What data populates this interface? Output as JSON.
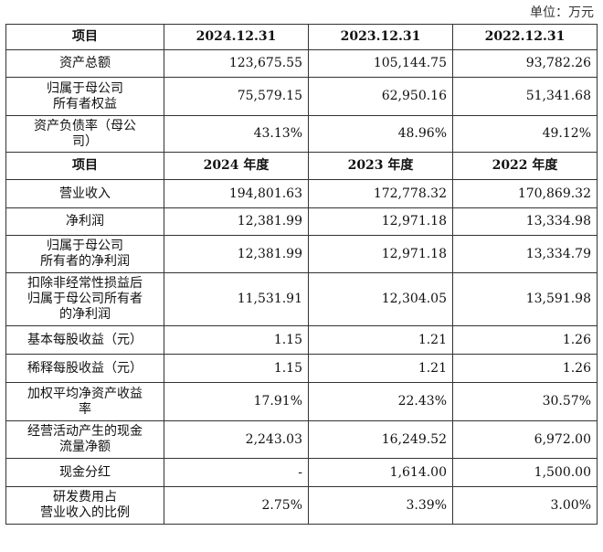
{
  "unit": "单位：万元",
  "section1": {
    "headers": [
      "项目",
      "2024.12.31",
      "2023.12.31",
      "2022.12.31"
    ],
    "rows": [
      {
        "label": "资产总额",
        "values": [
          "123,675.55",
          "105,144.75",
          "93,782.26"
        ]
      },
      {
        "label": "归属于母公司\n所有者权益",
        "values": [
          "75,579.15",
          "62,950.16",
          "51,341.68"
        ]
      },
      {
        "label": "资产负债率（母公\n司）",
        "values": [
          "43.13%",
          "48.96%",
          "49.12%"
        ]
      }
    ]
  },
  "section2": {
    "headers": [
      "项目",
      "2024 年度",
      "2023 年度",
      "2022 年度"
    ],
    "rows": [
      {
        "label": "营业收入",
        "values": [
          "194,801.63",
          "172,778.32",
          "170,869.32"
        ]
      },
      {
        "label": "净利润",
        "values": [
          "12,381.99",
          "12,971.18",
          "13,334.98"
        ]
      },
      {
        "label": "归属于母公司\n所有者的净利润",
        "values": [
          "12,381.99",
          "12,971.18",
          "13,334.79"
        ]
      },
      {
        "label": "扣除非经常性损益后\n归属于母公司所有者\n的净利润",
        "values": [
          "11,531.91",
          "12,304.05",
          "13,591.98"
        ]
      },
      {
        "label": "基本每股收益（元）",
        "values": [
          "1.15",
          "1.21",
          "1.26"
        ]
      },
      {
        "label": "稀释每股收益（元）",
        "values": [
          "1.15",
          "1.21",
          "1.26"
        ]
      },
      {
        "label": "加权平均净资产收益\n率",
        "values": [
          "17.91%",
          "22.43%",
          "30.57%"
        ]
      },
      {
        "label": "经营活动产生的现金\n流量净额",
        "values": [
          "2,243.03",
          "16,249.52",
          "6,972.00"
        ]
      },
      {
        "label": "现金分红",
        "values": [
          "-",
          "1,614.00",
          "1,500.00"
        ]
      },
      {
        "label": "研发费用占\n营业收入的比例",
        "values": [
          "2.75%",
          "3.39%",
          "3.00%"
        ]
      }
    ]
  }
}
